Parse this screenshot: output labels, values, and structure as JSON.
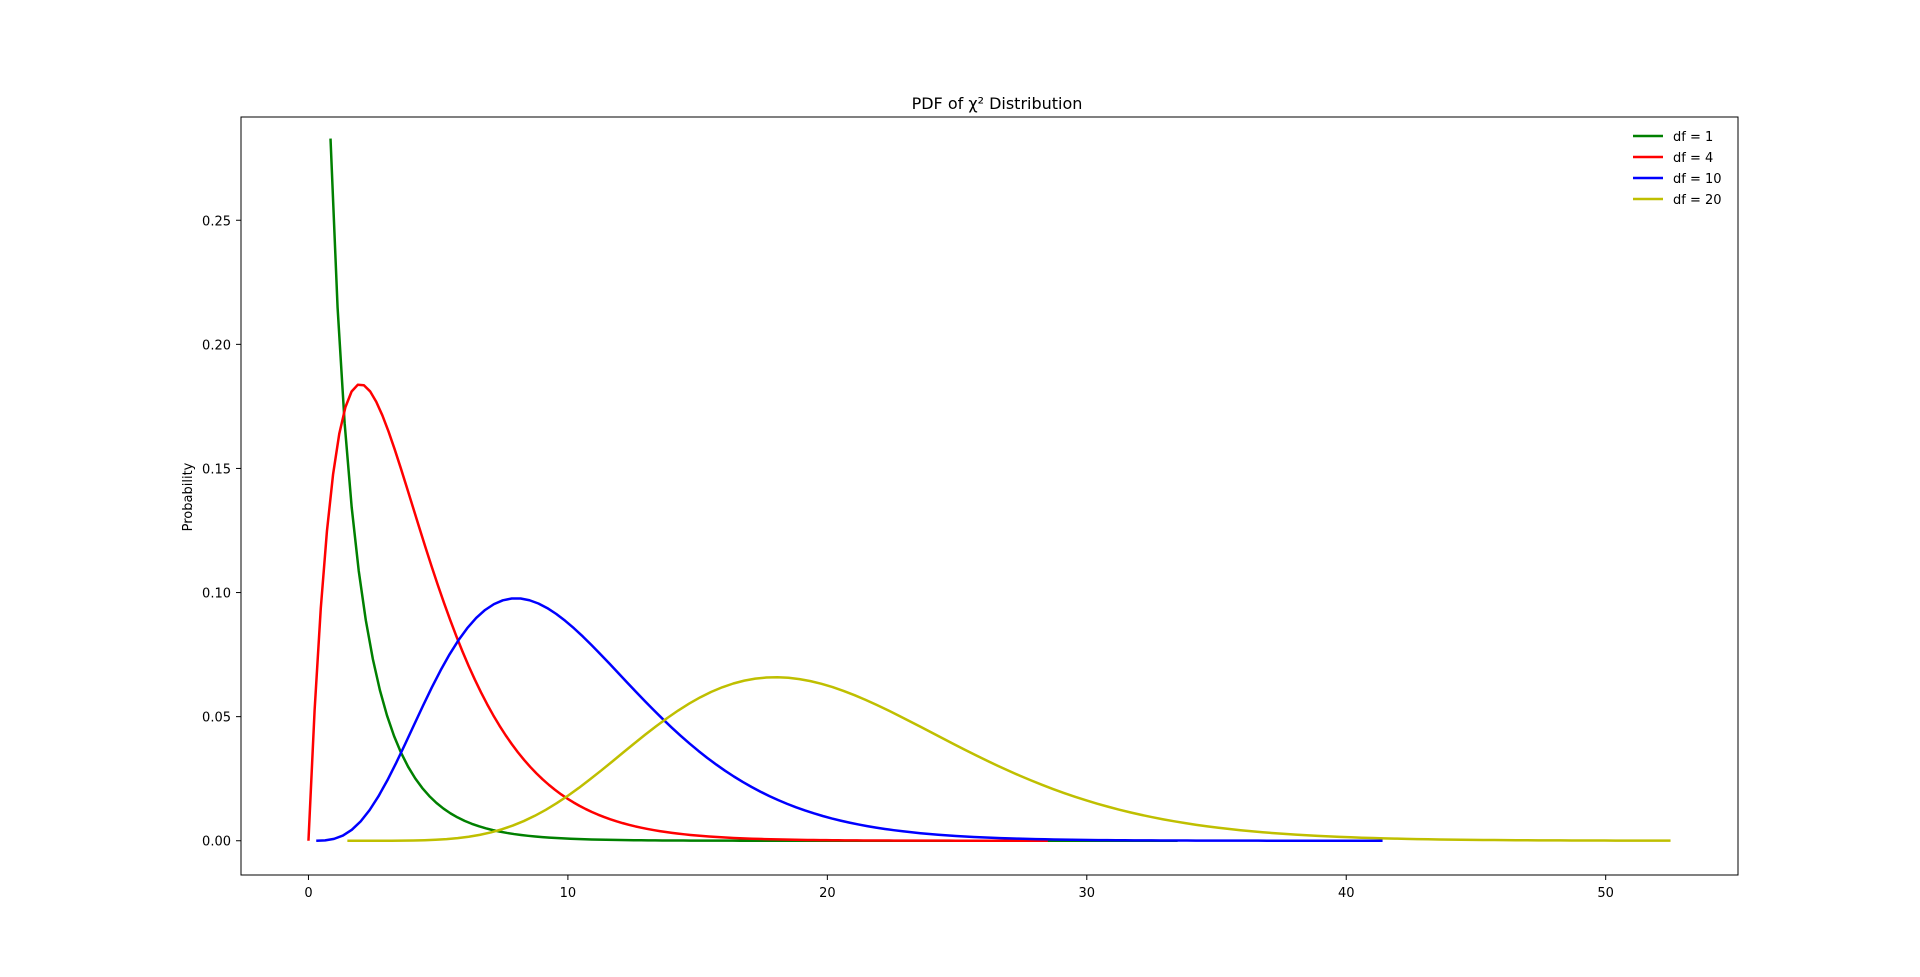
{
  "chart_data": {
    "type": "line",
    "title": "PDF of χ² Distribution",
    "xlabel": "",
    "ylabel": "Probability",
    "xlim": [
      -2.6,
      55.1
    ],
    "ylim": [
      -0.0138,
      0.2916
    ],
    "xticks": [
      0,
      10,
      20,
      30,
      40,
      50
    ],
    "xtick_labels": [
      "0",
      "10",
      "20",
      "30",
      "40",
      "50"
    ],
    "yticks": [
      0.0,
      0.05,
      0.1,
      0.15,
      0.2,
      0.25
    ],
    "ytick_labels": [
      "0.00",
      "0.05",
      "0.10",
      "0.15",
      "0.20",
      "0.25"
    ],
    "grid": false,
    "legend_position": "top-right",
    "legend_frame": false,
    "series": [
      {
        "name": "df = 1",
        "df": 1,
        "color": "#008000",
        "x_range": [
          0.85,
          33.5
        ]
      },
      {
        "name": "df = 4",
        "df": 4,
        "color": "#ff0000",
        "x_range": [
          0.0,
          28.5
        ]
      },
      {
        "name": "df = 10",
        "df": 10,
        "color": "#0000ff",
        "x_range": [
          0.3,
          41.4
        ]
      },
      {
        "name": "df = 20",
        "df": 20,
        "color": "#bfbf00",
        "x_range": [
          1.5,
          52.5
        ]
      }
    ]
  }
}
